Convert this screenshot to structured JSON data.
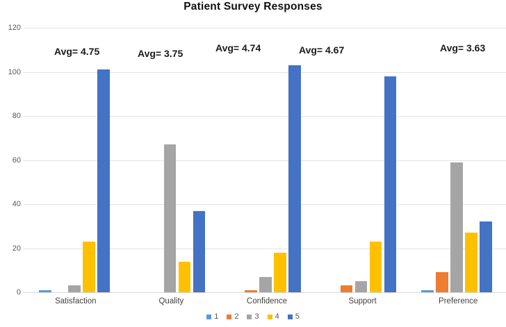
{
  "chart_data": {
    "type": "bar",
    "title": "Patient Survey Responses",
    "xlabel": "",
    "ylabel": "",
    "categories": [
      "Satisfaction",
      "Quality",
      "Confidence",
      "Support",
      "Preference"
    ],
    "series": [
      {
        "name": "1",
        "color": "#5B9BD5",
        "values": [
          1,
          0,
          0,
          0,
          1
        ]
      },
      {
        "name": "2",
        "color": "#ED7D31",
        "values": [
          0,
          0,
          1,
          3,
          9
        ]
      },
      {
        "name": "3",
        "color": "#A5A5A5",
        "values": [
          3,
          67,
          7,
          5,
          59
        ]
      },
      {
        "name": "4",
        "color": "#FFC000",
        "values": [
          23,
          14,
          18,
          23,
          27
        ]
      },
      {
        "name": "5",
        "color": "#4472C4",
        "values": [
          101,
          37,
          103,
          98,
          32
        ]
      }
    ],
    "annotations": [
      "Avg= 4.75",
      "Avg= 3.75",
      "Avg= 4.74",
      "Avg= 4.67",
      "Avg= 3.63"
    ],
    "ylim": [
      0,
      120
    ],
    "yticks": [
      0,
      20,
      40,
      60,
      80,
      100,
      120
    ],
    "grid": true,
    "legend_position": "bottom",
    "gridline_color": "#e3e3e3",
    "axis_line_color": "#d9d9d9",
    "text_colors": {
      "title": "#111111",
      "axis_labels": "#595959",
      "category_labels": "#3f3f3f",
      "annotations": "#1a1a1a"
    }
  }
}
